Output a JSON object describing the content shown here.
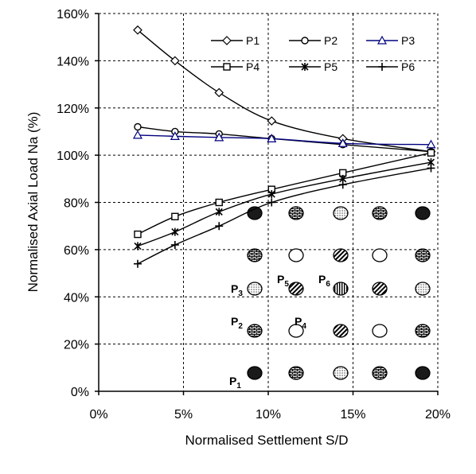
{
  "chart_data": {
    "type": "line",
    "title": "",
    "xlabel": "Normalised Settlement S/D",
    "ylabel": "Normalised Axial Load Na (%)",
    "xlim": [
      0,
      20
    ],
    "ylim": [
      0,
      160
    ],
    "x_ticks": [
      "0%",
      "5%",
      "10%",
      "15%",
      "20%"
    ],
    "y_ticks": [
      "0%",
      "20%",
      "40%",
      "60%",
      "80%",
      "100%",
      "120%",
      "140%",
      "160%"
    ],
    "grid": "dashed",
    "legend_position": "top-right",
    "x": [
      2.3,
      4.5,
      7.1,
      10.2,
      14.4,
      19.6
    ],
    "series": [
      {
        "name": "P1",
        "marker": "diamond",
        "color": "#000000",
        "values": [
          153,
          140,
          126.5,
          114.5,
          107,
          101.5
        ]
      },
      {
        "name": "P2",
        "marker": "circle",
        "color": "#000000",
        "values": [
          112,
          110,
          109,
          107,
          104.5,
          101.5
        ]
      },
      {
        "name": "P3",
        "marker": "triangle",
        "color": "#000080",
        "values": [
          108.5,
          108,
          107.5,
          107,
          105,
          104.5
        ]
      },
      {
        "name": "P4",
        "marker": "square",
        "color": "#000000",
        "values": [
          66.5,
          74,
          80,
          85.5,
          92.5,
          101
        ]
      },
      {
        "name": "P5",
        "marker": "asterisk",
        "color": "#000000",
        "values": [
          61.5,
          67.5,
          76,
          83.5,
          90,
          97
        ]
      },
      {
        "name": "P6",
        "marker": "plus",
        "color": "#000000",
        "values": [
          54,
          62,
          70,
          80,
          87.5,
          94.5
        ]
      }
    ],
    "inset": {
      "pile_labels": [
        {
          "id": "P1",
          "main": "P",
          "sub": "1"
        },
        {
          "id": "P2",
          "main": "P",
          "sub": "2"
        },
        {
          "id": "P3",
          "main": "P",
          "sub": "3"
        },
        {
          "id": "P4",
          "main": "P",
          "sub": "4"
        },
        {
          "id": "P5",
          "main": "P",
          "sub": "5"
        },
        {
          "id": "P6",
          "main": "P",
          "sub": "6"
        }
      ],
      "piles": [
        {
          "row": 1,
          "col": 1,
          "pattern": "solid"
        },
        {
          "row": 1,
          "col": 2,
          "pattern": "brick"
        },
        {
          "row": 1,
          "col": 3,
          "pattern": "dots"
        },
        {
          "row": 1,
          "col": 4,
          "pattern": "brick"
        },
        {
          "row": 1,
          "col": 5,
          "pattern": "solid"
        },
        {
          "row": 2,
          "col": 1,
          "pattern": "brick"
        },
        {
          "row": 2,
          "col": 2,
          "pattern": "empty"
        },
        {
          "row": 2,
          "col": 3,
          "pattern": "hatch"
        },
        {
          "row": 2,
          "col": 4,
          "pattern": "empty"
        },
        {
          "row": 2,
          "col": 5,
          "pattern": "brick"
        },
        {
          "row": 3,
          "col": 1,
          "pattern": "dots"
        },
        {
          "row": 3,
          "col": 2,
          "pattern": "hatch"
        },
        {
          "row": 3,
          "col": 3,
          "pattern": "vertical"
        },
        {
          "row": 3,
          "col": 4,
          "pattern": "hatch"
        },
        {
          "row": 3,
          "col": 5,
          "pattern": "dots"
        },
        {
          "row": 4,
          "col": 1,
          "pattern": "brick"
        },
        {
          "row": 4,
          "col": 2,
          "pattern": "empty"
        },
        {
          "row": 4,
          "col": 3,
          "pattern": "hatch"
        },
        {
          "row": 4,
          "col": 4,
          "pattern": "empty"
        },
        {
          "row": 4,
          "col": 5,
          "pattern": "brick"
        },
        {
          "row": 5,
          "col": 1,
          "pattern": "solid"
        },
        {
          "row": 5,
          "col": 2,
          "pattern": "brick"
        },
        {
          "row": 5,
          "col": 3,
          "pattern": "dots"
        },
        {
          "row": 5,
          "col": 4,
          "pattern": "brick"
        },
        {
          "row": 5,
          "col": 5,
          "pattern": "solid"
        }
      ]
    }
  }
}
